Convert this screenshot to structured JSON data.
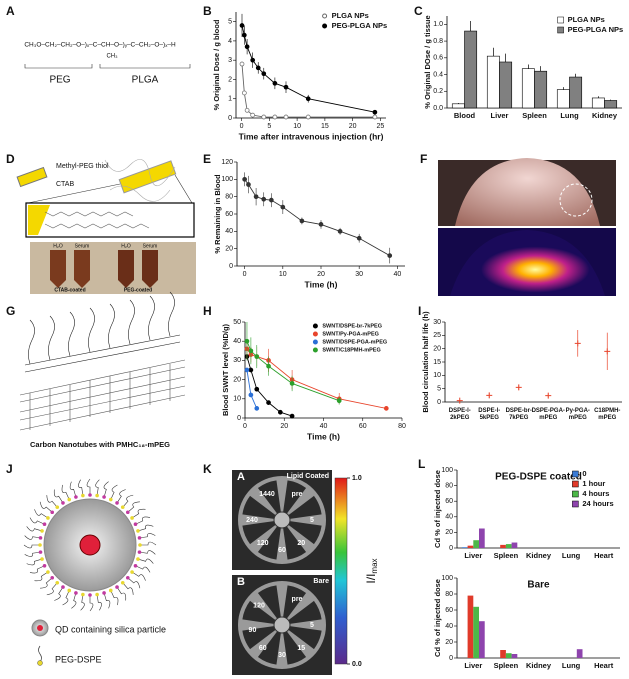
{
  "panel_labels": [
    "A",
    "B",
    "C",
    "D",
    "E",
    "F",
    "G",
    "H",
    "I",
    "J",
    "K",
    "L"
  ],
  "panel_a": {
    "formula": "CH₃O–CH₂–CH₂–O–)ₓ–C–CH–O–)ᵧ–C–CH₂–O–)ₓ–H",
    "substituent": "CH₃",
    "labels": [
      "PEG",
      "PLGA"
    ]
  },
  "panel_d": {
    "labels": [
      "Methyl-PEG thiol",
      "CTAB"
    ],
    "tubes": [
      "H₂O",
      "Serum",
      "H₂O",
      "Serum"
    ],
    "captions": [
      "CTAB-coated",
      "PEG-coated"
    ]
  },
  "panel_g": {
    "caption": "Carbon Nanotubes with PMHC₁₈-mPEG"
  },
  "panel_j": {
    "legend": [
      "QD containing silica particle",
      "PEG-DSPE"
    ]
  },
  "panel_k": {
    "images": [
      {
        "letter": "A",
        "title": "Lipid Coated",
        "times": [
          "1440",
          "pre",
          "5",
          "20",
          "60",
          "120",
          "240"
        ]
      },
      {
        "letter": "B",
        "title": "Bare",
        "times": [
          "pre",
          "5",
          "15",
          "30",
          "60",
          "90",
          "120"
        ]
      }
    ],
    "colorbar": {
      "label": "I/I",
      "label_sub": "max",
      "lim": [
        0,
        1
      ],
      "ticks": [
        {
          "value": 1,
          "label": "1.0"
        },
        {
          "value": 0,
          "label": "0.0"
        }
      ]
    }
  },
  "chart_data": [
    {
      "type": "line",
      "xlabel": "Time after intravenous injection (hr)",
      "ylabel": "% Original Dose / g blood",
      "xlim": [
        -1,
        26
      ],
      "xticks": [
        0,
        5,
        10,
        15,
        20,
        25
      ],
      "ylim": [
        0,
        5.5
      ],
      "yticks": [
        0,
        1,
        2,
        3,
        4,
        5
      ],
      "legend": "upper right",
      "series": [
        {
          "name": "PLGA NPs",
          "color": "#ffffff",
          "x": [
            0.08,
            0.5,
            1,
            2,
            4,
            6,
            8,
            12,
            24
          ],
          "values": [
            2.8,
            1.3,
            0.4,
            0.15,
            0.05,
            0.05,
            0.05,
            0.05,
            0.05
          ]
        },
        {
          "name": "PEG-PLGA NPs",
          "color": "#000000",
          "x": [
            0.08,
            0.5,
            1,
            2,
            3,
            4,
            6,
            8,
            12,
            24
          ],
          "values": [
            4.8,
            4.3,
            3.7,
            3.0,
            2.6,
            2.3,
            1.8,
            1.6,
            1.0,
            0.3
          ],
          "errors": [
            0.6,
            0.5,
            0.4,
            0.4,
            0.3,
            0.3,
            0.3,
            0.3,
            0.2,
            0.1
          ]
        }
      ]
    },
    {
      "type": "bar",
      "ylabel": "% Original DOse / g tissue",
      "categories": [
        "Blood",
        "Liver",
        "Spleen",
        "Lung",
        "Kidney"
      ],
      "ylim": [
        0,
        1.1
      ],
      "yticks": [
        {
          "value": 0,
          "label": "0.0"
        },
        0.2,
        0.4,
        0.6,
        0.8,
        {
          "value": 1,
          "label": "1.0"
        }
      ],
      "legend": "upper right",
      "series": [
        {
          "name": "PLGA NPs",
          "color": "#ffffff",
          "values": [
            0.05,
            0.62,
            0.47,
            0.22,
            0.12
          ],
          "errors": [
            0.01,
            0.1,
            0.05,
            0.03,
            0.02
          ]
        },
        {
          "name": "PEG-PLGA NPs",
          "color": "#808080",
          "values": [
            0.92,
            0.55,
            0.44,
            0.37,
            0.09
          ],
          "errors": [
            0.12,
            0.1,
            0.06,
            0.04,
            0.01
          ]
        }
      ]
    },
    {
      "type": "line",
      "xlabel": "Time (h)",
      "ylabel": "% Remaining in Blood",
      "xlim": [
        -2,
        42
      ],
      "xticks": [
        0,
        10,
        20,
        30,
        40
      ],
      "ylim": [
        0,
        120
      ],
      "yticks": [
        0,
        20,
        40,
        60,
        80,
        100,
        120
      ],
      "series": [
        {
          "color": "#333333",
          "x": [
            0,
            1,
            3,
            5,
            7,
            10,
            15,
            20,
            25,
            30,
            38
          ],
          "values": [
            100,
            94,
            80,
            77,
            76,
            68,
            52,
            48,
            40,
            32,
            12
          ],
          "errors": [
            8,
            10,
            10,
            8,
            8,
            8,
            4,
            5,
            4,
            5,
            9
          ]
        }
      ]
    },
    {
      "type": "line",
      "xlabel": "Time (h)",
      "ylabel": "Blood SWNT level (%ID/g)",
      "xlim": [
        0,
        80
      ],
      "xticks": [
        0,
        20,
        40,
        60,
        80
      ],
      "ylim": [
        0,
        50
      ],
      "yticks": [
        0,
        10,
        20,
        30,
        40,
        50
      ],
      "legend": "upper right",
      "series": [
        {
          "name": "SWNT/DSPE-br-7kPEG",
          "color": "#000000",
          "x": [
            1,
            3,
            6,
            12,
            18,
            24
          ],
          "values": [
            32,
            25,
            15,
            8,
            3,
            1
          ]
        },
        {
          "name": "SWNT/Py-PGA-mPEG",
          "color": "#e8452c",
          "x": [
            1,
            3,
            6,
            12,
            24,
            48,
            72
          ],
          "values": [
            36,
            33,
            32,
            30,
            20,
            10,
            5
          ],
          "errors": [
            5,
            4,
            5,
            6,
            5,
            3,
            1
          ]
        },
        {
          "name": "SWNT/DSPE-PGA-mPEG",
          "color": "#2a6fd6",
          "x": [
            1,
            3,
            6
          ],
          "values": [
            25,
            12,
            5
          ]
        },
        {
          "name": "SWNT/C18PMH-mPEG",
          "color": "#2ca02c",
          "x": [
            1,
            3,
            6,
            12,
            24,
            48
          ],
          "values": [
            40,
            35,
            32,
            27,
            18,
            9
          ],
          "errors": [
            10,
            7,
            6,
            5,
            4,
            2
          ]
        }
      ]
    },
    {
      "type": "scatter",
      "ylabel": "Blood circulation half life (h)",
      "categories": [
        "DSPE-l-2kPEG",
        "DSPE-l-5kPEG",
        "DSPE-br-7kPEG",
        "DSPE-PGA-mPEG",
        "Py-PGA-mPEG",
        "C18PMH-mPEG"
      ],
      "ylim": [
        0,
        30
      ],
      "yticks": [
        0,
        5,
        10,
        15,
        20,
        25,
        30
      ],
      "color": "#e8452c",
      "values": [
        0.5,
        2.5,
        5.5,
        2.4,
        22,
        19
      ],
      "errors": [
        0.3,
        1,
        1,
        0.8,
        5,
        7
      ]
    },
    {
      "type": "bar",
      "title": "PEG-DSPE coated",
      "ylabel": "Cd % of injected dose",
      "categories": [
        "Liver",
        "Spleen",
        "Kidney",
        "Lung",
        "Heart"
      ],
      "ylim": [
        0,
        100
      ],
      "yticks": [
        0,
        20,
        40,
        60,
        80,
        100
      ],
      "legend": "upper right",
      "series": [
        {
          "name": "0",
          "color": "#3a7bd5",
          "values": [
            1,
            0,
            0,
            0,
            0
          ]
        },
        {
          "name": "1 hour",
          "color": "#e03a2a",
          "values": [
            3,
            4,
            0,
            0,
            0
          ]
        },
        {
          "name": "4 hours",
          "color": "#4cb848",
          "values": [
            10,
            5,
            0,
            0,
            0
          ]
        },
        {
          "name": "24 hours",
          "color": "#8e44ad",
          "values": [
            25,
            7,
            0,
            0,
            0
          ]
        }
      ]
    },
    {
      "type": "bar",
      "title": "Bare",
      "ylabel": "Cd % of injected dose",
      "categories": [
        "Liver",
        "Spleen",
        "Kidney",
        "Lung",
        "Heart"
      ],
      "ylim": [
        0,
        100
      ],
      "yticks": [
        0,
        20,
        40,
        60,
        80,
        100
      ],
      "series": [
        {
          "color": "#3a7bd5",
          "values": [
            0,
            0,
            0,
            0,
            0
          ]
        },
        {
          "color": "#e03a2a",
          "values": [
            78,
            10,
            0,
            0,
            0
          ]
        },
        {
          "color": "#4cb848",
          "values": [
            64,
            6,
            0,
            0,
            0
          ]
        },
        {
          "color": "#8e44ad",
          "values": [
            46,
            5,
            0,
            11,
            0
          ]
        }
      ]
    }
  ]
}
